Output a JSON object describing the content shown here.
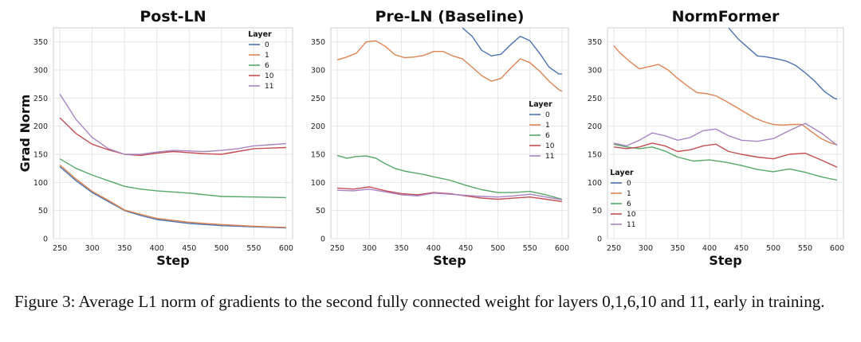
{
  "figure": {
    "caption": "Figure 3: Average L1 norm of gradients to the second fully connected weight for layers 0,1,6,10 and 11, early in training."
  },
  "chart_data": [
    {
      "type": "line",
      "title": "Post-LN",
      "xlabel": "Step",
      "ylabel": "Grad Norm",
      "xlim": [
        240,
        610
      ],
      "ylim": [
        0,
        375
      ],
      "xticks": [
        250,
        300,
        350,
        400,
        450,
        500,
        550,
        600
      ],
      "yticks": [
        0,
        50,
        100,
        150,
        200,
        250,
        300,
        350
      ],
      "grid": true,
      "legend": {
        "title": "Layer",
        "position": "top-right"
      },
      "series": [
        {
          "name": "0",
          "color": "#4c72b0",
          "x": [
            250,
            275,
            300,
            325,
            350,
            375,
            400,
            450,
            500,
            550,
            600
          ],
          "y": [
            128,
            103,
            82,
            66,
            50,
            41,
            34,
            27,
            23,
            21,
            19
          ]
        },
        {
          "name": "1",
          "color": "#dd8452",
          "x": [
            250,
            275,
            300,
            325,
            350,
            375,
            400,
            450,
            500,
            550,
            600
          ],
          "y": [
            131,
            106,
            84,
            68,
            51,
            43,
            36,
            29,
            25,
            22,
            20
          ]
        },
        {
          "name": "6",
          "color": "#55a868",
          "x": [
            250,
            275,
            300,
            325,
            350,
            375,
            400,
            450,
            500,
            550,
            600
          ],
          "y": [
            142,
            125,
            113,
            103,
            93,
            88,
            85,
            81,
            75,
            74,
            73
          ]
        },
        {
          "name": "10",
          "color": "#c44e52",
          "x": [
            250,
            275,
            300,
            325,
            350,
            375,
            400,
            425,
            450,
            475,
            500,
            525,
            550,
            575,
            600
          ],
          "y": [
            215,
            187,
            168,
            158,
            150,
            148,
            152,
            155,
            153,
            151,
            150,
            155,
            160,
            161,
            162
          ]
        },
        {
          "name": "11",
          "color": "#a884c4",
          "x": [
            250,
            275,
            300,
            325,
            350,
            375,
            400,
            425,
            450,
            475,
            500,
            525,
            550,
            575,
            600
          ],
          "y": [
            257,
            212,
            180,
            160,
            150,
            150,
            154,
            157,
            156,
            155,
            157,
            160,
            165,
            167,
            169
          ]
        }
      ]
    },
    {
      "type": "line",
      "title": "Pre-LN (Baseline)",
      "xlabel": "Step",
      "ylabel": "",
      "xlim": [
        240,
        610
      ],
      "ylim": [
        0,
        375
      ],
      "xticks": [
        250,
        300,
        350,
        400,
        450,
        500,
        550,
        600
      ],
      "yticks": [
        0,
        50,
        100,
        150,
        200,
        250,
        300,
        350
      ],
      "grid": true,
      "legend": {
        "title": "Layer",
        "position": "center-right"
      },
      "series": [
        {
          "name": "0",
          "color": "#4c72b0",
          "x": [
            445,
            460,
            475,
            490,
            505,
            520,
            535,
            550,
            565,
            580,
            595,
            600
          ],
          "y": [
            375,
            360,
            335,
            325,
            328,
            345,
            360,
            352,
            330,
            305,
            293,
            293
          ]
        },
        {
          "name": "1",
          "color": "#dd8452",
          "x": [
            250,
            265,
            280,
            295,
            310,
            325,
            340,
            355,
            370,
            385,
            400,
            415,
            430,
            445,
            460,
            475,
            490,
            505,
            520,
            535,
            550,
            565,
            580,
            595,
            600
          ],
          "y": [
            318,
            323,
            330,
            350,
            352,
            342,
            327,
            322,
            323,
            326,
            333,
            333,
            325,
            320,
            305,
            290,
            280,
            285,
            303,
            320,
            313,
            298,
            280,
            265,
            262
          ]
        },
        {
          "name": "6",
          "color": "#55a868",
          "x": [
            250,
            265,
            280,
            295,
            310,
            325,
            340,
            355,
            370,
            385,
            400,
            425,
            450,
            475,
            500,
            525,
            550,
            575,
            600
          ],
          "y": [
            148,
            143,
            146,
            147,
            143,
            133,
            125,
            120,
            117,
            114,
            110,
            104,
            95,
            87,
            82,
            82,
            84,
            78,
            70
          ]
        },
        {
          "name": "10",
          "color": "#c44e52",
          "x": [
            250,
            275,
            300,
            325,
            350,
            375,
            400,
            425,
            450,
            475,
            500,
            525,
            550,
            575,
            600
          ],
          "y": [
            90,
            88,
            92,
            85,
            80,
            78,
            82,
            80,
            76,
            72,
            70,
            72,
            74,
            70,
            66
          ]
        },
        {
          "name": "11",
          "color": "#a884c4",
          "x": [
            250,
            275,
            300,
            325,
            350,
            375,
            400,
            425,
            450,
            475,
            500,
            525,
            550,
            575,
            600
          ],
          "y": [
            86,
            85,
            88,
            83,
            78,
            76,
            81,
            79,
            77,
            75,
            74,
            76,
            79,
            74,
            69
          ]
        }
      ]
    },
    {
      "type": "line",
      "title": "NormFormer",
      "xlabel": "Step",
      "ylabel": "",
      "xlim": [
        240,
        610
      ],
      "ylim": [
        0,
        375
      ],
      "xticks": [
        250,
        300,
        350,
        400,
        450,
        500,
        550,
        600
      ],
      "yticks": [
        0,
        50,
        100,
        150,
        200,
        250,
        300,
        350
      ],
      "grid": true,
      "legend": {
        "title": "Layer",
        "position": "bottom-left"
      },
      "series": [
        {
          "name": "0",
          "color": "#4c72b0",
          "x": [
            430,
            445,
            460,
            475,
            490,
            505,
            520,
            535,
            550,
            565,
            580,
            595,
            600
          ],
          "y": [
            375,
            355,
            340,
            325,
            323,
            320,
            316,
            308,
            295,
            280,
            262,
            250,
            248
          ]
        },
        {
          "name": "1",
          "color": "#dd8452",
          "x": [
            250,
            260,
            275,
            290,
            305,
            320,
            335,
            350,
            365,
            380,
            395,
            410,
            425,
            440,
            455,
            470,
            485,
            500,
            515,
            530,
            545,
            560,
            575,
            590,
            600
          ],
          "y": [
            343,
            330,
            315,
            302,
            306,
            310,
            300,
            285,
            272,
            260,
            258,
            254,
            245,
            235,
            225,
            215,
            208,
            203,
            202,
            203,
            203,
            190,
            178,
            170,
            167
          ]
        },
        {
          "name": "6",
          "color": "#55a868",
          "x": [
            250,
            270,
            290,
            310,
            330,
            350,
            375,
            400,
            425,
            450,
            475,
            500,
            525,
            550,
            575,
            600
          ],
          "y": [
            168,
            163,
            160,
            163,
            156,
            145,
            138,
            140,
            136,
            130,
            123,
            119,
            124,
            118,
            110,
            104
          ]
        },
        {
          "name": "10",
          "color": "#c44e52",
          "x": [
            250,
            270,
            290,
            310,
            330,
            350,
            370,
            390,
            410,
            430,
            450,
            475,
            500,
            525,
            550,
            575,
            600
          ],
          "y": [
            163,
            160,
            163,
            170,
            165,
            155,
            158,
            165,
            168,
            155,
            150,
            145,
            142,
            150,
            152,
            140,
            127
          ]
        },
        {
          "name": "11",
          "color": "#a884c4",
          "x": [
            250,
            270,
            290,
            310,
            330,
            350,
            370,
            390,
            410,
            430,
            450,
            475,
            500,
            525,
            550,
            575,
            600
          ],
          "y": [
            170,
            165,
            175,
            188,
            183,
            175,
            180,
            192,
            195,
            183,
            175,
            173,
            178,
            192,
            205,
            188,
            166
          ]
        }
      ]
    }
  ]
}
